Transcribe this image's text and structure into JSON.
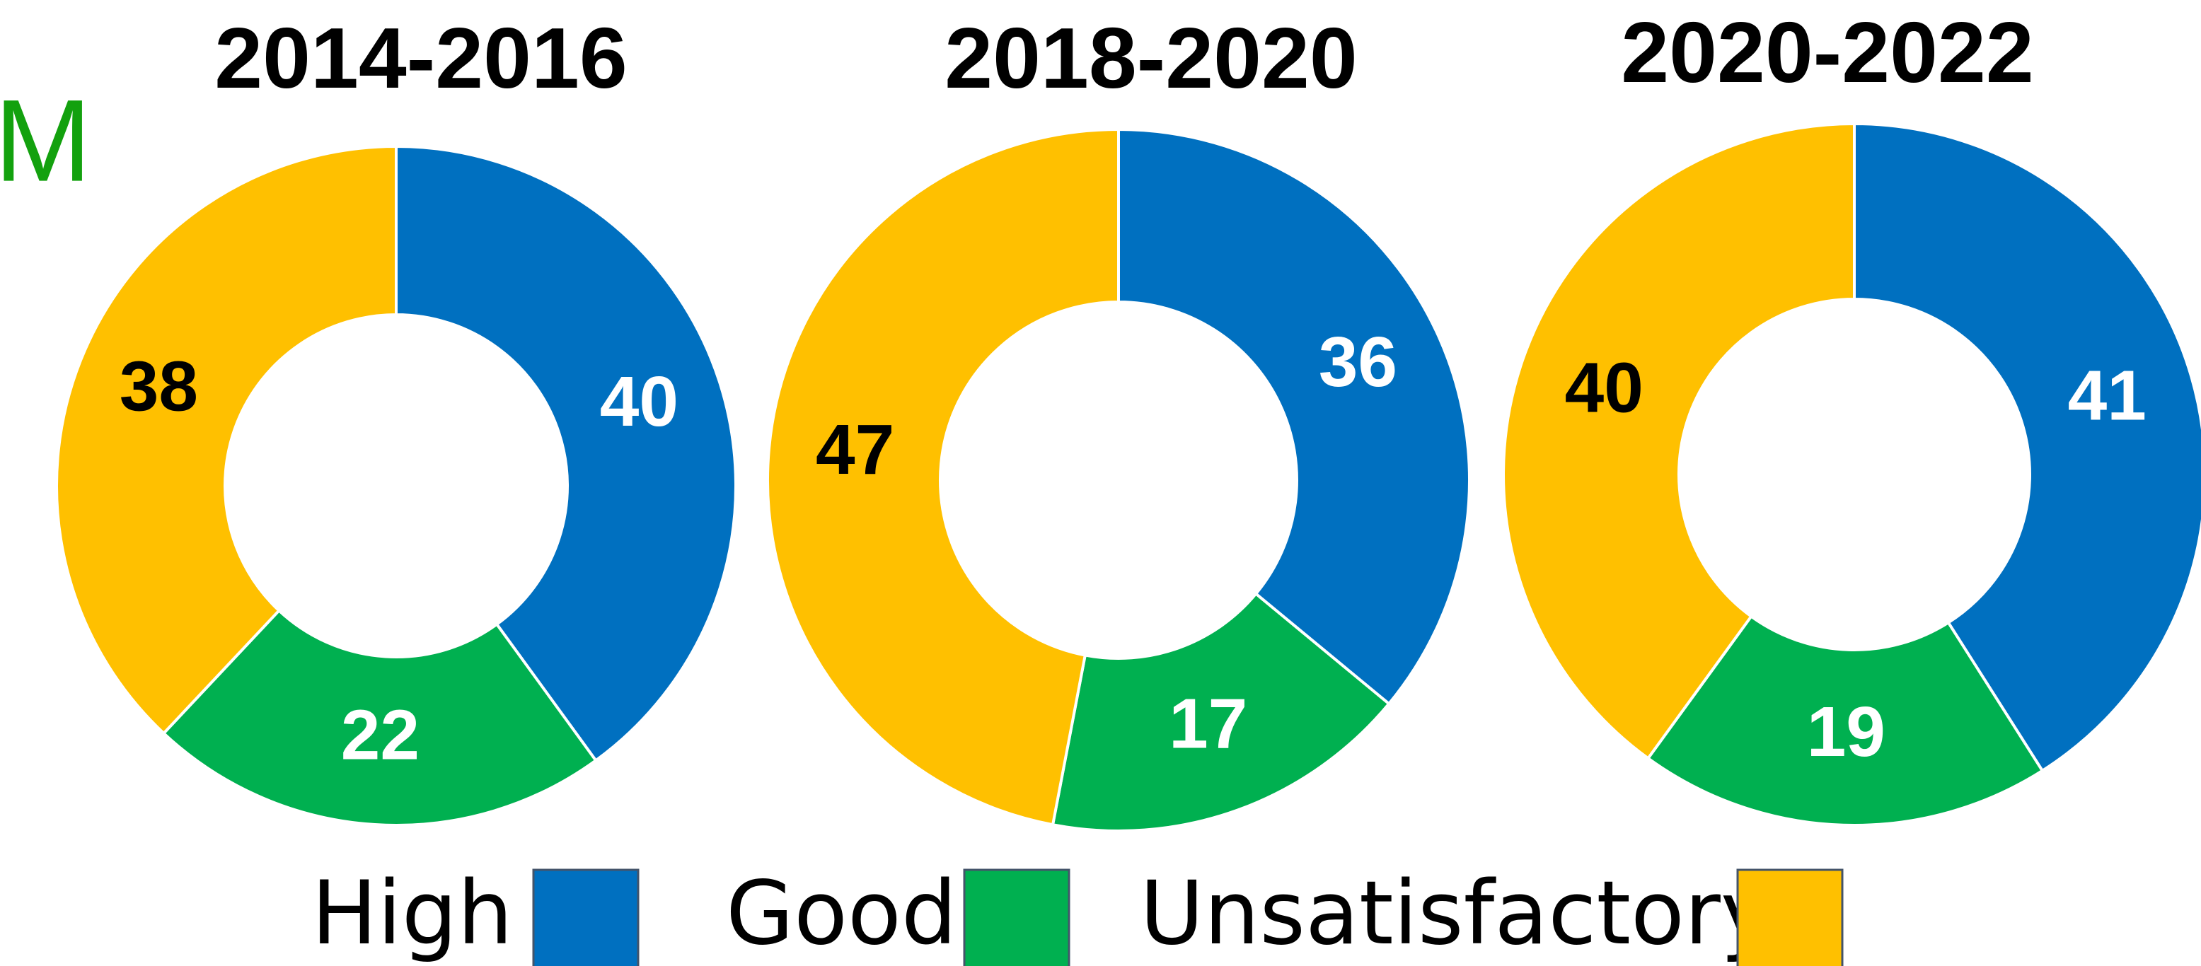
{
  "side_text": "M",
  "chart_data": [
    {
      "type": "pie",
      "title": "2014-2016",
      "categories": [
        "High",
        "Good",
        "Unsatisfactory"
      ],
      "values": [
        40,
        22,
        38
      ],
      "colors": [
        "#0070c0",
        "#00b050",
        "#ffc000"
      ],
      "label_colors": [
        "#ffffff",
        "#ffffff",
        "#000000"
      ]
    },
    {
      "type": "pie",
      "title": "2018-2020",
      "categories": [
        "High",
        "Good",
        "Unsatisfactory"
      ],
      "values": [
        36,
        17,
        47
      ],
      "colors": [
        "#0070c0",
        "#00b050",
        "#ffc000"
      ],
      "label_colors": [
        "#ffffff",
        "#ffffff",
        "#000000"
      ]
    },
    {
      "type": "pie",
      "title": "2020-2022",
      "categories": [
        "High",
        "Good",
        "Unsatisfactory"
      ],
      "values": [
        41,
        19,
        40
      ],
      "colors": [
        "#0070c0",
        "#00b050",
        "#ffc000"
      ],
      "label_colors": [
        "#ffffff",
        "#ffffff",
        "#000000"
      ]
    }
  ]
}
